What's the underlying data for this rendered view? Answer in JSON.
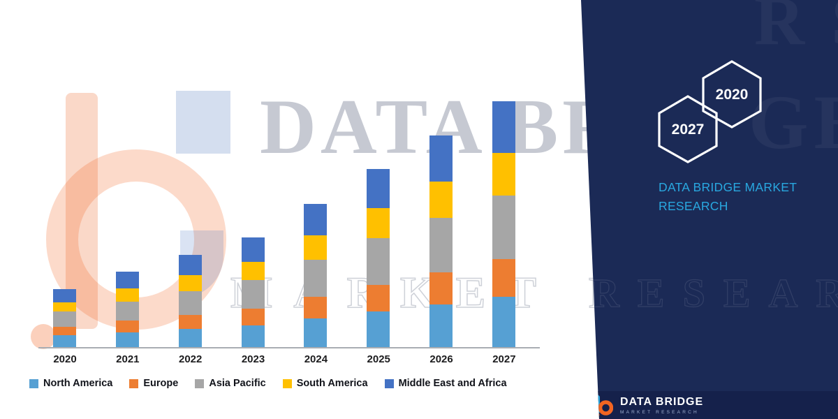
{
  "chart_data": {
    "type": "bar",
    "stacked": true,
    "title": "",
    "xlabel": "",
    "ylabel": "",
    "categories": [
      "2020",
      "2021",
      "2022",
      "2023",
      "2024",
      "2025",
      "2026",
      "2027"
    ],
    "series": [
      {
        "name": "North America",
        "color": "#56A0D3",
        "values": [
          17,
          22,
          27,
          32,
          42,
          52,
          62,
          74
        ]
      },
      {
        "name": "Europe",
        "color": "#ED7D31",
        "values": [
          13,
          17,
          20,
          24,
          32,
          39,
          47,
          55
        ]
      },
      {
        "name": "Asia Pacific",
        "color": "#A6A6A6",
        "values": [
          22,
          28,
          35,
          42,
          54,
          68,
          80,
          93
        ]
      },
      {
        "name": "South America",
        "color": "#FFC000",
        "values": [
          14,
          19,
          23,
          27,
          36,
          44,
          53,
          62
        ]
      },
      {
        "name": "Middle East and Africa",
        "color": "#4472C4",
        "values": [
          19,
          24,
          30,
          35,
          46,
          57,
          68,
          76
        ]
      }
    ],
    "ylim": [
      0,
      380
    ],
    "grid": false,
    "y_axis_labels_visible": false,
    "legend_position": "bottom"
  },
  "watermarks": {
    "headline": "DATA BRIDGE",
    "outline": "MARKET RESEARCH",
    "panel_fragments": [
      "RS",
      "GE",
      "RESEARCH"
    ]
  },
  "panel": {
    "bg_color": "#1B2A56",
    "hexagon_front_label": "2027",
    "hexagon_back_label": "2020",
    "brand_line1": "DATA BRIDGE MARKET",
    "brand_line2": "RESEARCH",
    "brand_color": "#29A8E0"
  },
  "footer": {
    "brand": "DATA BRIDGE",
    "sub": "MARKET RESEARCH"
  }
}
